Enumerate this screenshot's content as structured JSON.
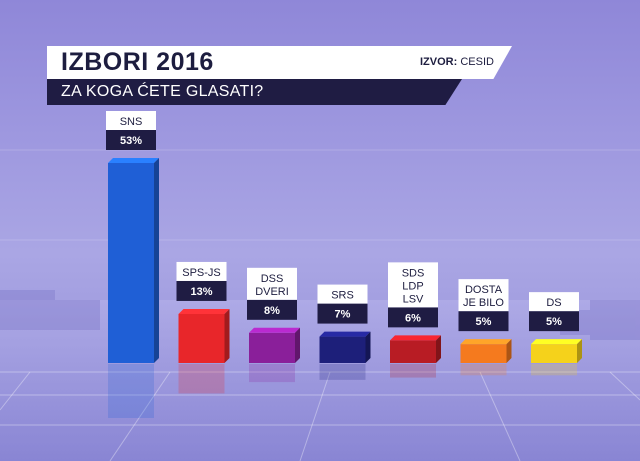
{
  "header": {
    "title": "IZBORI 2016",
    "source_label": "IZVOR:",
    "source_value": "CESID",
    "question": "ZA KOGA ĆETE GLASATI?"
  },
  "chart_data": {
    "type": "bar",
    "title": "IZBORI 2016",
    "subtitle": "ZA KOGA ĆETE GLASATI?",
    "categories": [
      "SNS",
      "SPS-JS",
      "DSS DVERI",
      "SRS",
      "SDS LDP LSV",
      "DOSTA JE BILO",
      "DS"
    ],
    "category_lines": [
      [
        "SNS"
      ],
      [
        "SPS-JS"
      ],
      [
        "DSS",
        "DVERI"
      ],
      [
        "SRS"
      ],
      [
        "SDS",
        "LDP",
        "LSV"
      ],
      [
        "DOSTA",
        "JE BILO"
      ],
      [
        "DS"
      ]
    ],
    "values": [
      53,
      13,
      8,
      7,
      6,
      5,
      5
    ],
    "value_labels": [
      "53%",
      "13%",
      "8%",
      "7%",
      "6%",
      "5%",
      "5%"
    ],
    "colors": [
      "#1f5fd6",
      "#e8262a",
      "#8a1f9a",
      "#1d1f7a",
      "#b81c24",
      "#f57a1e",
      "#f5d21b"
    ],
    "unit": "%"
  }
}
